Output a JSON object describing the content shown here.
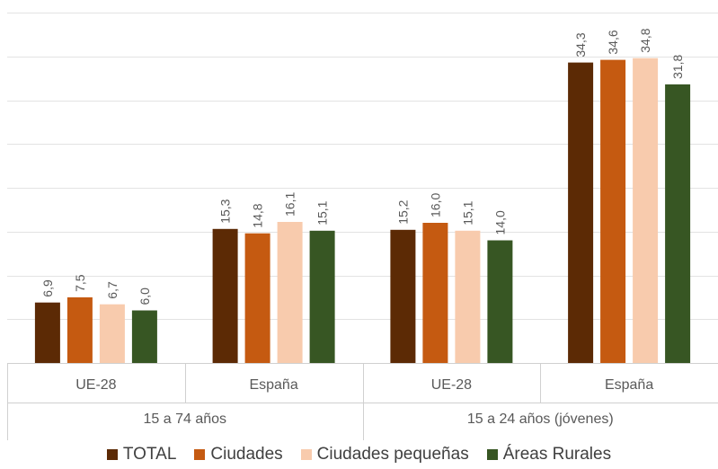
{
  "chart_data": {
    "type": "bar",
    "groups": [
      {
        "label": "15 a 74 años",
        "categories": [
          "UE-28",
          "España"
        ]
      },
      {
        "label": "15 a 24 años (jóvenes)",
        "categories": [
          "UE-28",
          "España"
        ]
      }
    ],
    "series": [
      {
        "name": "TOTAL",
        "color": "#5c2a05",
        "values": [
          6.9,
          15.3,
          15.2,
          34.3
        ]
      },
      {
        "name": "Ciudades",
        "color": "#c55a11",
        "values": [
          7.5,
          14.8,
          16.0,
          34.6
        ]
      },
      {
        "name": "Ciudades pequeñas",
        "color": "#f8cbad",
        "values": [
          6.7,
          16.1,
          15.1,
          34.8
        ]
      },
      {
        "name": "Áreas Rurales",
        "color": "#375623",
        "values": [
          6.0,
          15.1,
          14.0,
          31.8
        ]
      }
    ],
    "value_labels": [
      [
        "6,9",
        "15,3",
        "15,2",
        "34,3"
      ],
      [
        "7,5",
        "14,8",
        "16,0",
        "34,6"
      ],
      [
        "6,7",
        "16,1",
        "15,1",
        "34,8"
      ],
      [
        "6,0",
        "15,1",
        "14,0",
        "31,8"
      ]
    ],
    "ylim": [
      0,
      40
    ],
    "gridlines": true,
    "legend_position": "bottom"
  }
}
